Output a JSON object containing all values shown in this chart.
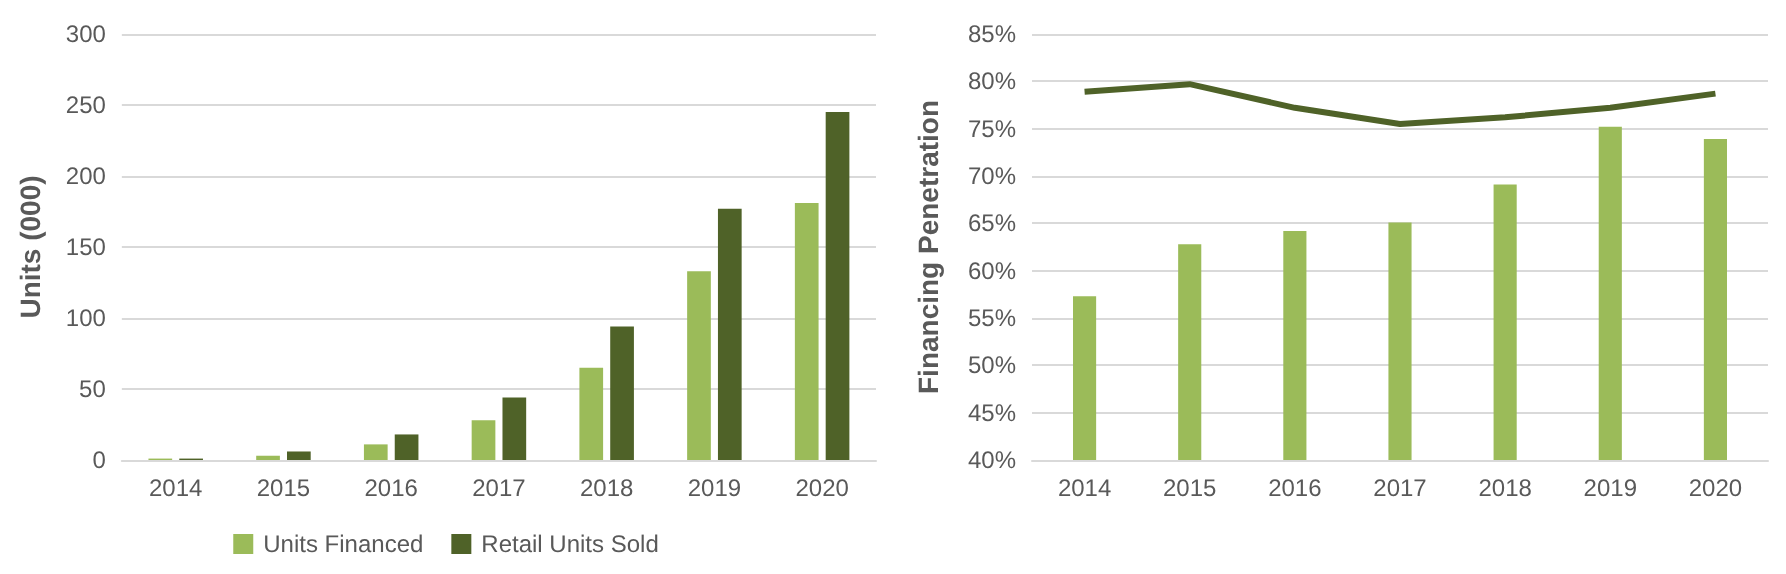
{
  "chart_data": [
    {
      "type": "bar",
      "ylabel": "Units (000)",
      "categories": [
        "2014",
        "2015",
        "2016",
        "2017",
        "2018",
        "2019",
        "2020"
      ],
      "series": [
        {
          "name": "Units Financed",
          "color": "#9bbb59",
          "values": [
            1,
            3,
            11,
            28,
            65,
            133,
            181
          ]
        },
        {
          "name": "Retail Units Sold",
          "color": "#4f6228",
          "values": [
            1,
            6,
            18,
            44,
            94,
            177,
            245
          ]
        }
      ],
      "ylim": [
        0,
        300
      ],
      "yticks": [
        0,
        50,
        100,
        150,
        200,
        250,
        300
      ],
      "grid": "y",
      "legend": "bottom"
    },
    {
      "type": "bar",
      "ylabel": "Financing Penetration",
      "categories": [
        "2014",
        "2015",
        "2016",
        "2017",
        "2018",
        "2019",
        "2020"
      ],
      "series": [
        {
          "color": "#9bbb59",
          "values": [
            57.3,
            62.8,
            64.2,
            65.1,
            69.1,
            75.2,
            73.9
          ]
        },
        {
          "type": "line",
          "color": "#4f6228",
          "values": [
            78.9,
            79.7,
            77.2,
            75.5,
            76.2,
            77.2,
            78.7
          ]
        }
      ],
      "ylim": [
        40,
        85
      ],
      "yticks": [
        {
          "value": 40,
          "label": "40%"
        },
        {
          "value": 45,
          "label": "45%"
        },
        {
          "value": 50,
          "label": "50%"
        },
        {
          "value": 55,
          "label": "55%"
        },
        {
          "value": 60,
          "label": "60%"
        },
        {
          "value": 65,
          "label": "65%"
        },
        {
          "value": 70,
          "label": "70%"
        },
        {
          "value": 75,
          "label": "75%"
        },
        {
          "value": 80,
          "label": "80%"
        },
        {
          "value": 85,
          "label": "85%"
        }
      ],
      "grid": "y",
      "legend": false,
      "marker": "none"
    }
  ]
}
